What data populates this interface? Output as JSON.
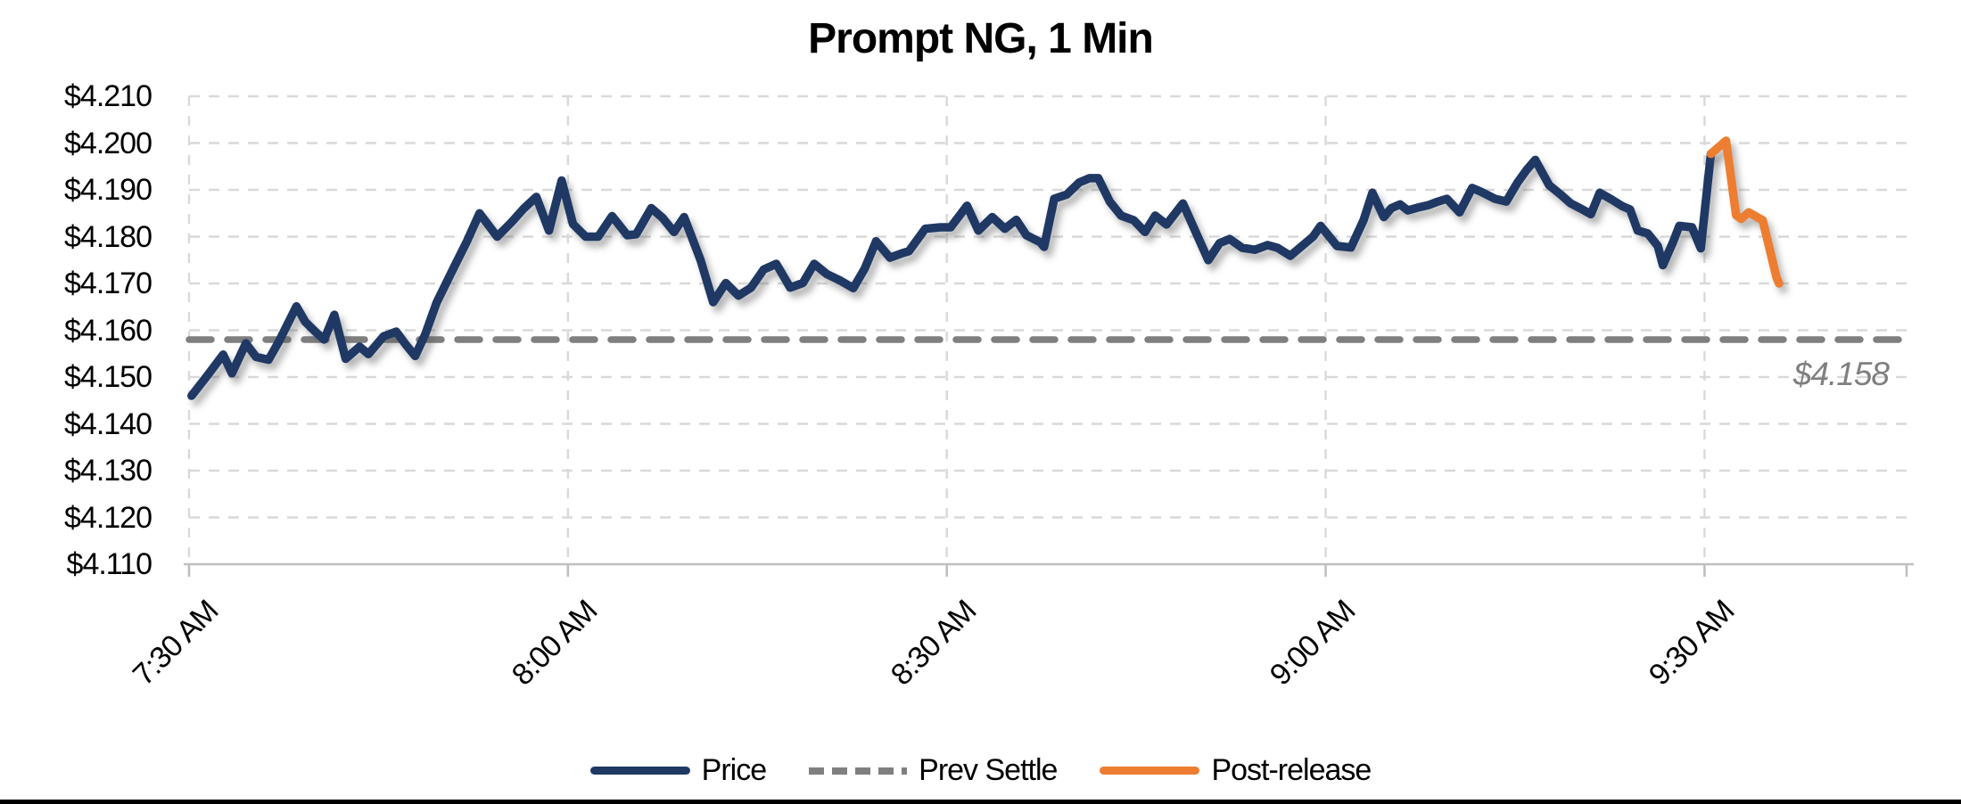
{
  "title": "Prompt NG, 1 Min",
  "annotation": {
    "prev_settle_label": "$4.158"
  },
  "colors": {
    "price": "#1f3864",
    "post_release": "#ed7d31",
    "prev_settle": "#7f7f7f",
    "gridline": "#d9d9d9",
    "axis": "#bfbfbf",
    "title_text": "#000000",
    "annotation_text": "#7f7f7f",
    "background": "#ffffff",
    "bottom_border": "#000000"
  },
  "legend": [
    {
      "label": "Price",
      "color": "#1f3864",
      "style": "solid"
    },
    {
      "label": "Prev Settle",
      "color": "#7f7f7f",
      "style": "dashed"
    },
    {
      "label": "Post-release",
      "color": "#ed7d31",
      "style": "solid"
    }
  ],
  "chart_data": {
    "type": "line",
    "title": "Prompt NG, 1 Min",
    "xlabel": "",
    "ylabel": "",
    "grid": true,
    "legend_position": "bottom-center",
    "x_axis": {
      "unit": "minutes after 7:30 AM",
      "range_minutes": [
        0,
        136
      ],
      "tick_minutes": [
        0,
        30,
        60,
        90,
        120
      ],
      "tick_labels": [
        "7:30 AM",
        "8:00 AM",
        "8:30 AM",
        "9:00 AM",
        "9:30 AM"
      ],
      "label_rotation_deg": 45
    },
    "y_axis": {
      "range": [
        4.11,
        4.21
      ],
      "tick_step": 0.01,
      "tick_values": [
        4.11,
        4.12,
        4.13,
        4.14,
        4.15,
        4.16,
        4.17,
        4.18,
        4.19,
        4.2,
        4.21
      ],
      "tick_labels": [
        "$4.110",
        "$4.120",
        "$4.130",
        "$4.140",
        "$4.150",
        "$4.160",
        "$4.170",
        "$4.180",
        "$4.190",
        "$4.200",
        "$4.210"
      ],
      "format": "$#.000"
    },
    "prev_settle_value": 4.158,
    "series": [
      {
        "name": "Price",
        "color": "#1f3864",
        "style": "solid",
        "points": [
          [
            0.2,
            4.146
          ],
          [
            1.5,
            4.1505
          ],
          [
            2.7,
            4.1548
          ],
          [
            3.4,
            4.1508
          ],
          [
            4.5,
            4.1572
          ],
          [
            5.3,
            4.1543
          ],
          [
            6.3,
            4.1537
          ],
          [
            7.1,
            4.1575
          ],
          [
            8.5,
            4.1651
          ],
          [
            9.2,
            4.1618
          ],
          [
            10,
            4.1597
          ],
          [
            10.7,
            4.158
          ],
          [
            11.5,
            4.1633
          ],
          [
            12.4,
            4.1539
          ],
          [
            13.5,
            4.1565
          ],
          [
            14.2,
            4.1549
          ],
          [
            15.4,
            4.1587
          ],
          [
            16.4,
            4.1597
          ],
          [
            17.2,
            4.1568
          ],
          [
            17.9,
            4.1545
          ],
          [
            18.7,
            4.1591
          ],
          [
            19.6,
            4.1659
          ],
          [
            21,
            4.1736
          ],
          [
            22,
            4.179
          ],
          [
            23,
            4.185
          ],
          [
            24.4,
            4.18
          ],
          [
            25.5,
            4.183
          ],
          [
            26.5,
            4.186
          ],
          [
            27.5,
            4.1885
          ],
          [
            28.5,
            4.1813
          ],
          [
            29.5,
            4.192
          ],
          [
            30.4,
            4.1827
          ],
          [
            31.4,
            4.18
          ],
          [
            32.4,
            4.18
          ],
          [
            33.5,
            4.1844
          ],
          [
            34.7,
            4.1803
          ],
          [
            35.4,
            4.1805
          ],
          [
            36.6,
            4.1861
          ],
          [
            37.5,
            4.184
          ],
          [
            38.4,
            4.181
          ],
          [
            39.2,
            4.1842
          ],
          [
            40.5,
            4.175
          ],
          [
            41.5,
            4.166
          ],
          [
            42.5,
            4.1701
          ],
          [
            43.5,
            4.1674
          ],
          [
            44.5,
            4.1691
          ],
          [
            45.5,
            4.173
          ],
          [
            46.5,
            4.1742
          ],
          [
            47.6,
            4.1691
          ],
          [
            48.6,
            4.1701
          ],
          [
            49.5,
            4.1742
          ],
          [
            50.5,
            4.172
          ],
          [
            51.5,
            4.1707
          ],
          [
            52.6,
            4.169
          ],
          [
            53.5,
            4.1732
          ],
          [
            54.4,
            4.179
          ],
          [
            55.5,
            4.1755
          ],
          [
            56.5,
            4.1765
          ],
          [
            57,
            4.1769
          ],
          [
            58.3,
            4.1817
          ],
          [
            59.5,
            4.182
          ],
          [
            60.3,
            4.182
          ],
          [
            61.6,
            4.1866
          ],
          [
            62.5,
            4.1813
          ],
          [
            63.6,
            4.1842
          ],
          [
            64.6,
            4.1817
          ],
          [
            65.5,
            4.1836
          ],
          [
            66.3,
            4.1803
          ],
          [
            67.4,
            4.1788
          ],
          [
            67.7,
            4.1778
          ],
          [
            68.5,
            4.1881
          ],
          [
            69.5,
            4.189
          ],
          [
            70.5,
            4.1916
          ],
          [
            71.3,
            4.1925
          ],
          [
            72,
            4.1925
          ],
          [
            72.9,
            4.1875
          ],
          [
            73.8,
            4.1845
          ],
          [
            74.8,
            4.1835
          ],
          [
            75.7,
            4.181
          ],
          [
            76.5,
            4.1845
          ],
          [
            77.4,
            4.1826
          ],
          [
            78.7,
            4.1871
          ],
          [
            80.7,
            4.175
          ],
          [
            81.6,
            4.1786
          ],
          [
            82.4,
            4.1795
          ],
          [
            83.4,
            4.1776
          ],
          [
            84.4,
            4.1772
          ],
          [
            85.4,
            4.1782
          ],
          [
            86.2,
            4.1776
          ],
          [
            87.2,
            4.1759
          ],
          [
            89,
            4.18
          ],
          [
            89.6,
            4.1823
          ],
          [
            90.9,
            4.178
          ],
          [
            92,
            4.1777
          ],
          [
            93,
            4.1835
          ],
          [
            93.7,
            4.1894
          ],
          [
            94.6,
            4.1842
          ],
          [
            95.2,
            4.1861
          ],
          [
            95.9,
            4.1869
          ],
          [
            96.5,
            4.1856
          ],
          [
            97.3,
            4.1862
          ],
          [
            98.1,
            4.1867
          ],
          [
            98.9,
            4.1875
          ],
          [
            99.6,
            4.1881
          ],
          [
            100.6,
            4.1852
          ],
          [
            101.6,
            4.1904
          ],
          [
            102.3,
            4.1896
          ],
          [
            103.4,
            4.1881
          ],
          [
            104.3,
            4.1875
          ],
          [
            105.2,
            4.1916
          ],
          [
            105.9,
            4.1942
          ],
          [
            106.6,
            4.1964
          ],
          [
            107.7,
            4.191
          ],
          [
            108.6,
            4.189
          ],
          [
            109.4,
            4.1871
          ],
          [
            110.2,
            4.186
          ],
          [
            111,
            4.1848
          ],
          [
            111.7,
            4.1894
          ],
          [
            112.6,
            4.188
          ],
          [
            113.5,
            4.1865
          ],
          [
            114.1,
            4.1858
          ],
          [
            114.7,
            4.1813
          ],
          [
            115.5,
            4.1807
          ],
          [
            116.3,
            4.178
          ],
          [
            116.7,
            4.1739
          ],
          [
            117.5,
            4.1788
          ],
          [
            118,
            4.1823
          ],
          [
            119,
            4.182
          ],
          [
            119.7,
            4.1775
          ],
          [
            120.5,
            4.1977
          ]
        ]
      },
      {
        "name": "Prev Settle",
        "color": "#7f7f7f",
        "style": "dashed",
        "value": 4.158
      },
      {
        "name": "Post-release",
        "color": "#ed7d31",
        "style": "solid",
        "points": [
          [
            120.5,
            4.1977
          ],
          [
            121.7,
            4.2005
          ],
          [
            122.5,
            4.1846
          ],
          [
            122.9,
            4.1838
          ],
          [
            123.5,
            4.1852
          ],
          [
            124.6,
            4.1835
          ],
          [
            125.7,
            4.1713
          ],
          [
            125.9,
            4.17
          ]
        ]
      }
    ],
    "annotations": [
      {
        "text": "$4.158",
        "refers_to": "Prev Settle",
        "position": "right-end-below-line"
      }
    ]
  }
}
